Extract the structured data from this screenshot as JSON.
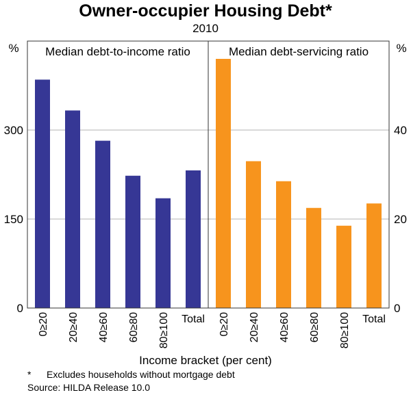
{
  "figure": {
    "title": "Owner-occupier Housing Debt*",
    "subtitle": "2010",
    "xlabel": "Income bracket (per cent)",
    "footnote_marker": "*",
    "footnote_text": "Excludes households without mortgage debt",
    "source": "Source: HILDA Release 10.0",
    "left_unit": "%",
    "right_unit": "%"
  },
  "chart_data": [
    {
      "type": "bar",
      "title": "Median debt-to-income ratio",
      "categories": [
        "0≥20",
        "20≥40",
        "40≥60",
        "60≥80",
        "80≥100",
        "Total"
      ],
      "values": [
        385,
        333,
        282,
        223,
        185,
        232
      ],
      "ylim": [
        0,
        450
      ],
      "yticks": [
        0,
        150,
        300
      ],
      "axis_side": "left",
      "color": "#363795",
      "grid": true
    },
    {
      "type": "bar",
      "title": "Median debt-servicing ratio",
      "categories": [
        "0≥20",
        "20≥40",
        "40≥60",
        "60≥80",
        "80≥100",
        "Total"
      ],
      "values": [
        56,
        33,
        28.5,
        22.5,
        18.5,
        23.5
      ],
      "ylim": [
        0,
        60
      ],
      "yticks": [
        0,
        20,
        40
      ],
      "axis_side": "right",
      "color": "#f7941d",
      "grid": true
    }
  ]
}
